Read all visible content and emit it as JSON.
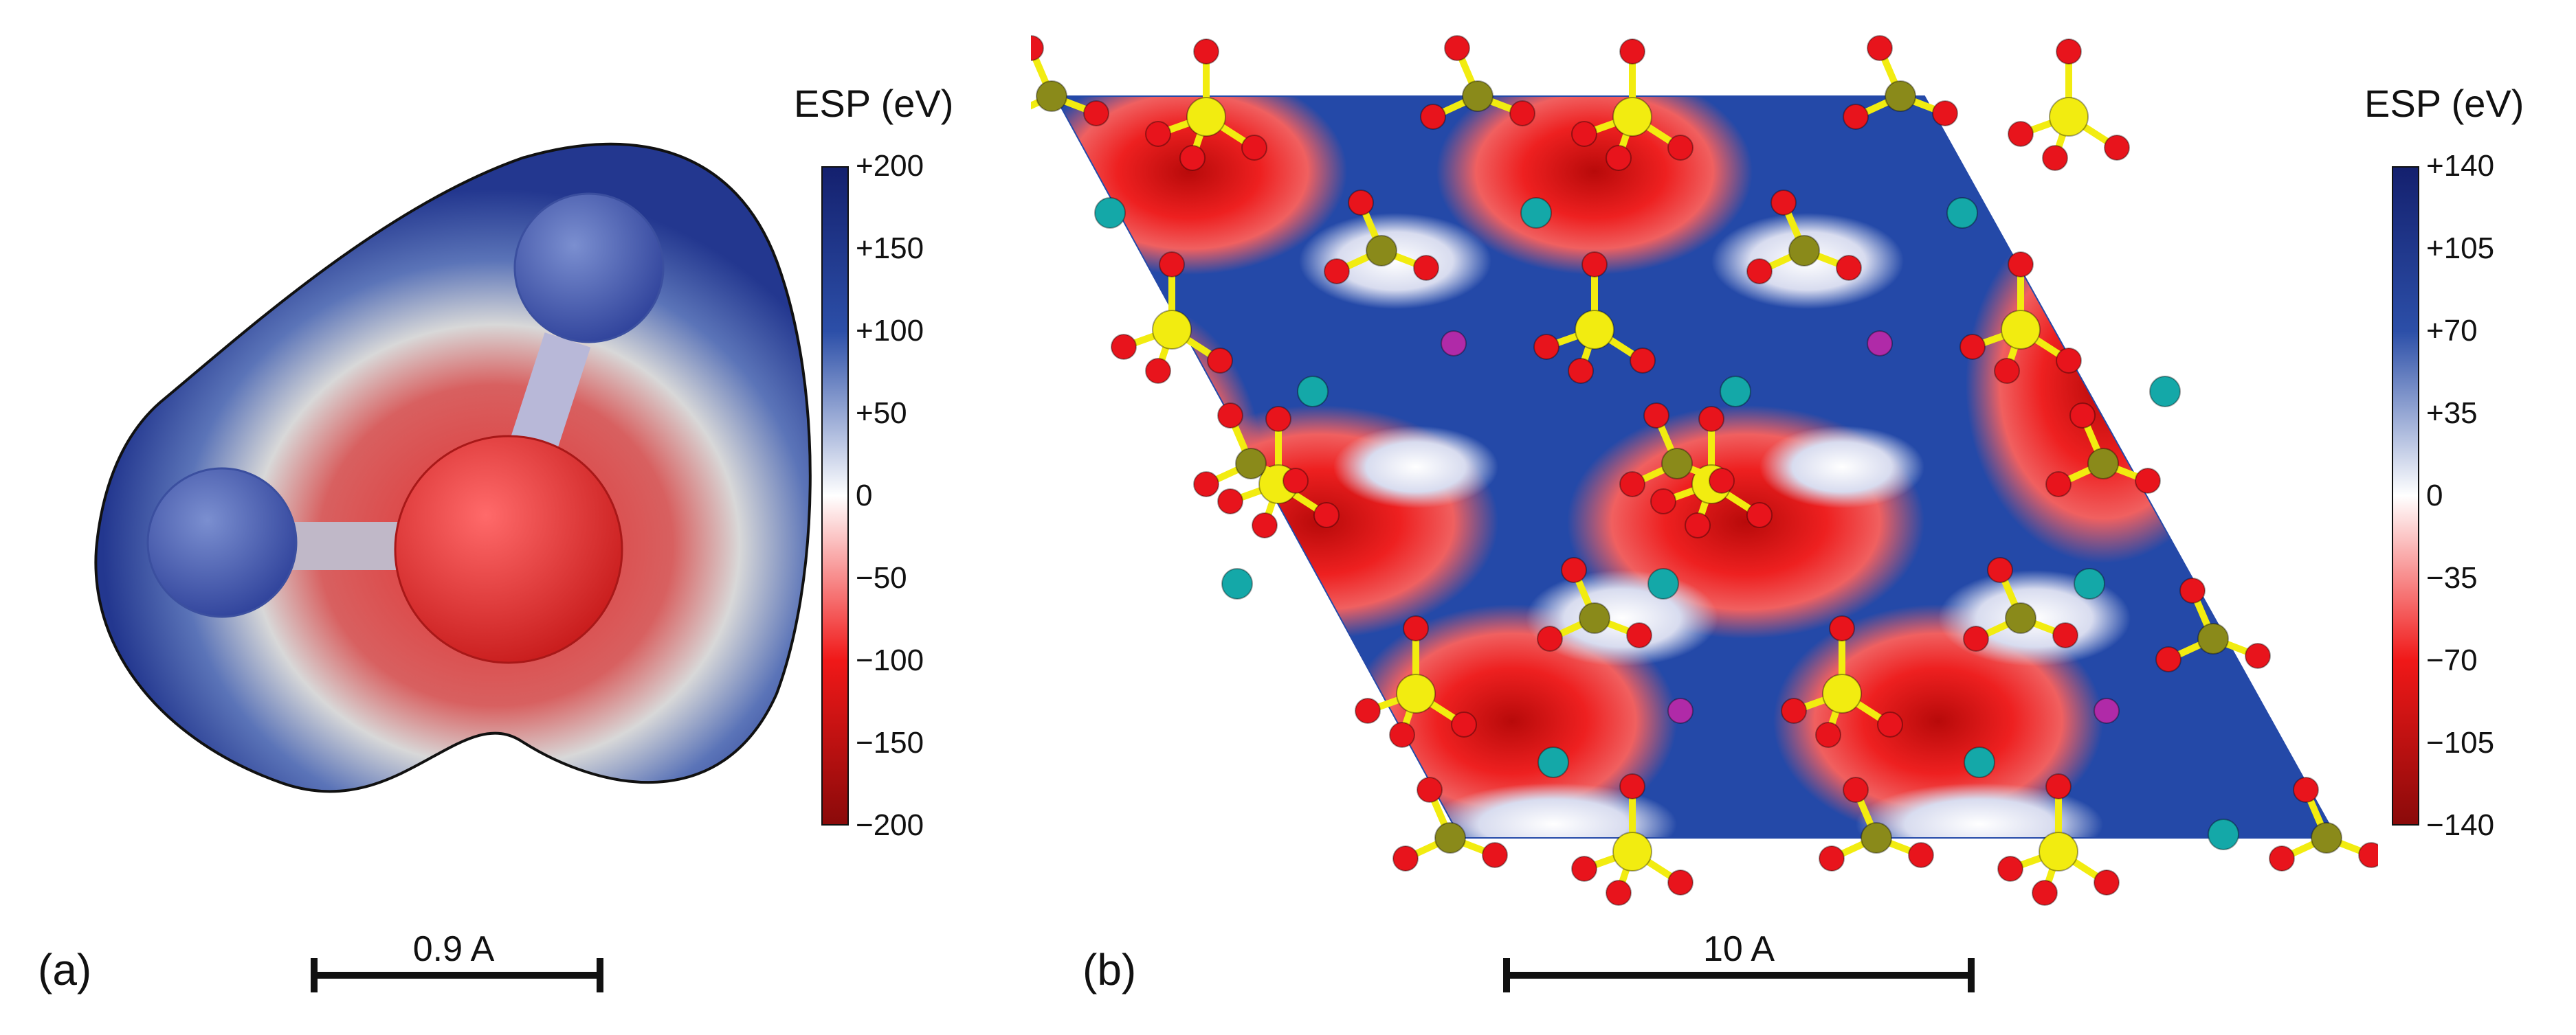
{
  "panel_a": {
    "label": "(a)",
    "scale_bar": "0.9 A",
    "colorbar": {
      "title": "ESP (eV)",
      "ticks": [
        "+200",
        "+150",
        "+100",
        "+50",
        "0",
        "−50",
        "−100",
        "−150",
        "−200"
      ],
      "max": 200,
      "min": -200
    }
  },
  "panel_b": {
    "label": "(b)",
    "scale_bar": "10 A",
    "colorbar": {
      "title": "ESP (eV)",
      "ticks": [
        "+140",
        "+105",
        "+70",
        "+35",
        "0",
        "−35",
        "−70",
        "−105",
        "−140"
      ],
      "max": 140,
      "min": -140
    }
  },
  "colors": {
    "positive": "#1f3f9a",
    "neutral": "#ffffff",
    "negative": "#e01010",
    "oxygen_atom": "#e8141c",
    "sulfur_atom": "#f2ec10",
    "carbon_atom": "#8a8a1a",
    "cation_cyan": "#14a8a8",
    "cation_magenta": "#b02aa8"
  }
}
